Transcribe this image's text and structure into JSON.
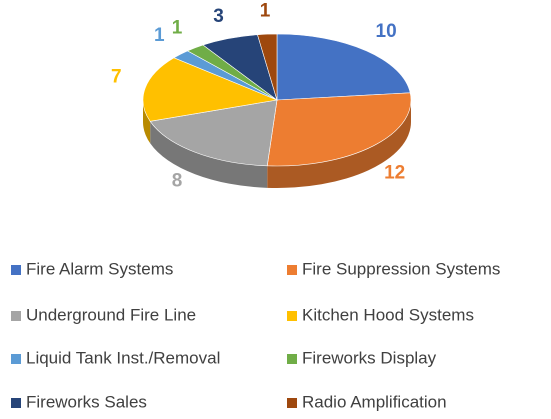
{
  "chart_data": {
    "type": "pie3d",
    "categories": [
      "Fire Alarm Systems",
      "Fire Suppression Systems",
      "Underground Fire Line",
      "Kitchen Hood Systems",
      "Liquid Tank Inst./Removal",
      "Fireworks Display",
      "Fireworks Sales",
      "Radio Amplification"
    ],
    "values": [
      10,
      12,
      8,
      7,
      1,
      1,
      3,
      1
    ],
    "colors": [
      "#4472c4",
      "#ed7d31",
      "#a5a5a5",
      "#ffc000",
      "#5b9bd5",
      "#70ad47",
      "#264478",
      "#9e480e"
    ],
    "legend": "bottom"
  }
}
